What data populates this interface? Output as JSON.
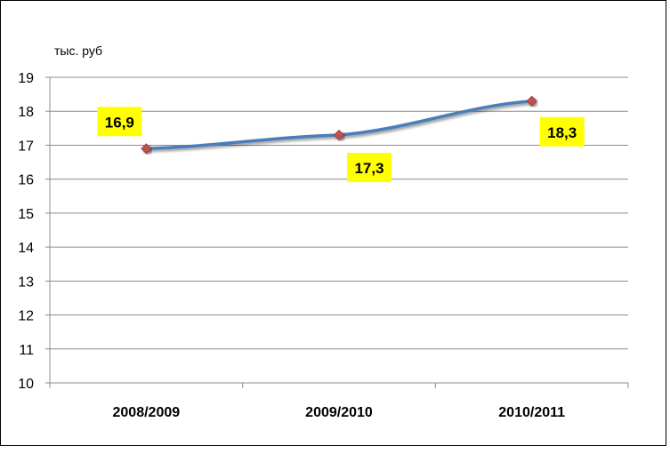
{
  "chart_data": {
    "type": "line",
    "categories": [
      "2008/2009",
      "2009/2010",
      "2010/2011"
    ],
    "series": [
      {
        "values": [
          16.9,
          17.3,
          18.3
        ],
        "data_labels": [
          "16,9",
          "17,3",
          "18,3"
        ],
        "color": "#4a7ebb",
        "marker_color": "#c0504d"
      }
    ],
    "unit_label": "тыс. руб",
    "ylim": [
      10,
      19
    ],
    "y_ticks": [
      "10",
      "11",
      "12",
      "13",
      "14",
      "15",
      "16",
      "17",
      "18",
      "19"
    ],
    "grid": true,
    "data_label_background": "#ffff00"
  }
}
